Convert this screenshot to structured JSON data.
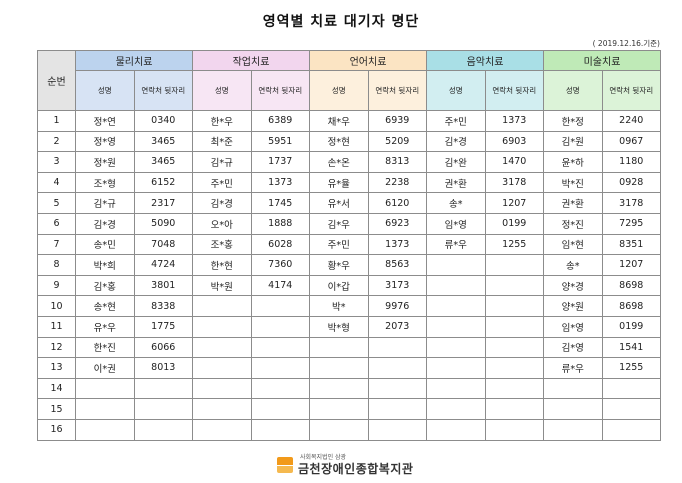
{
  "title": "영역별 치료 대기자 명단",
  "date": "( 2019.12.16.기준)",
  "header": {
    "no_label": "순번",
    "name_label": "성명",
    "phone_label": "연락처 뒷자리"
  },
  "therapies": [
    "물리치료",
    "작업치료",
    "언어치료",
    "음악치료",
    "미술치료"
  ],
  "rows": [
    {
      "no": "1",
      "cells": [
        [
          "정*연",
          "0340"
        ],
        [
          "한*우",
          "6389"
        ],
        [
          "채*우",
          "6939"
        ],
        [
          "주*민",
          "1373"
        ],
        [
          "한*정",
          "2240"
        ]
      ]
    },
    {
      "no": "2",
      "cells": [
        [
          "정*영",
          "3465"
        ],
        [
          "최*준",
          "5951"
        ],
        [
          "정*현",
          "5209"
        ],
        [
          "김*경",
          "6903"
        ],
        [
          "김*원",
          "0967"
        ]
      ]
    },
    {
      "no": "3",
      "cells": [
        [
          "정*원",
          "3465"
        ],
        [
          "김*규",
          "1737"
        ],
        [
          "손*온",
          "8313"
        ],
        [
          "김*완",
          "1470"
        ],
        [
          "윤*하",
          "1180"
        ]
      ]
    },
    {
      "no": "4",
      "cells": [
        [
          "조*형",
          "6152"
        ],
        [
          "주*민",
          "1373"
        ],
        [
          "유*율",
          "2238"
        ],
        [
          "권*환",
          "3178"
        ],
        [
          "박*진",
          "0928"
        ]
      ]
    },
    {
      "no": "5",
      "cells": [
        [
          "김*규",
          "2317"
        ],
        [
          "김*경",
          "1745"
        ],
        [
          "유*서",
          "6120"
        ],
        [
          "송*",
          "1207"
        ],
        [
          "권*환",
          "3178"
        ]
      ]
    },
    {
      "no": "6",
      "cells": [
        [
          "김*경",
          "5090"
        ],
        [
          "오*아",
          "1888"
        ],
        [
          "김*우",
          "6923"
        ],
        [
          "임*영",
          "0199"
        ],
        [
          "정*진",
          "7295"
        ]
      ]
    },
    {
      "no": "7",
      "cells": [
        [
          "송*민",
          "7048"
        ],
        [
          "조*홍",
          "6028"
        ],
        [
          "주*민",
          "1373"
        ],
        [
          "류*우",
          "1255"
        ],
        [
          "임*현",
          "8351"
        ]
      ]
    },
    {
      "no": "8",
      "cells": [
        [
          "박*희",
          "4724"
        ],
        [
          "한*현",
          "7360"
        ],
        [
          "황*우",
          "8563"
        ],
        [
          "",
          ""
        ],
        [
          "송*",
          "1207"
        ]
      ]
    },
    {
      "no": "9",
      "cells": [
        [
          "김*홍",
          "3801"
        ],
        [
          "박*원",
          "4174"
        ],
        [
          "이*갑",
          "3173"
        ],
        [
          "",
          ""
        ],
        [
          "양*경",
          "8698"
        ]
      ]
    },
    {
      "no": "10",
      "cells": [
        [
          "송*현",
          "8338"
        ],
        [
          "",
          ""
        ],
        [
          "박*",
          "9976"
        ],
        [
          "",
          ""
        ],
        [
          "양*원",
          "8698"
        ]
      ]
    },
    {
      "no": "11",
      "cells": [
        [
          "유*우",
          "1775"
        ],
        [
          "",
          ""
        ],
        [
          "박*형",
          "2073"
        ],
        [
          "",
          ""
        ],
        [
          "임*영",
          "0199"
        ]
      ]
    },
    {
      "no": "12",
      "cells": [
        [
          "한*진",
          "6066"
        ],
        [
          "",
          ""
        ],
        [
          "",
          ""
        ],
        [
          "",
          ""
        ],
        [
          "김*영",
          "1541"
        ]
      ]
    },
    {
      "no": "13",
      "cells": [
        [
          "이*권",
          "8013"
        ],
        [
          "",
          ""
        ],
        [
          "",
          ""
        ],
        [
          "",
          ""
        ],
        [
          "류*우",
          "1255"
        ]
      ]
    },
    {
      "no": "14",
      "cells": [
        [
          "",
          ""
        ],
        [
          "",
          ""
        ],
        [
          "",
          ""
        ],
        [
          "",
          ""
        ],
        [
          "",
          ""
        ]
      ]
    },
    {
      "no": "15",
      "cells": [
        [
          "",
          ""
        ],
        [
          "",
          ""
        ],
        [
          "",
          ""
        ],
        [
          "",
          ""
        ],
        [
          "",
          ""
        ]
      ]
    },
    {
      "no": "16",
      "cells": [
        [
          "",
          ""
        ],
        [
          "",
          ""
        ],
        [
          "",
          ""
        ],
        [
          "",
          ""
        ],
        [
          "",
          ""
        ]
      ]
    }
  ],
  "logo": {
    "sub": "사회복지법인 삼광",
    "main": "금천장애인종합복지관"
  }
}
